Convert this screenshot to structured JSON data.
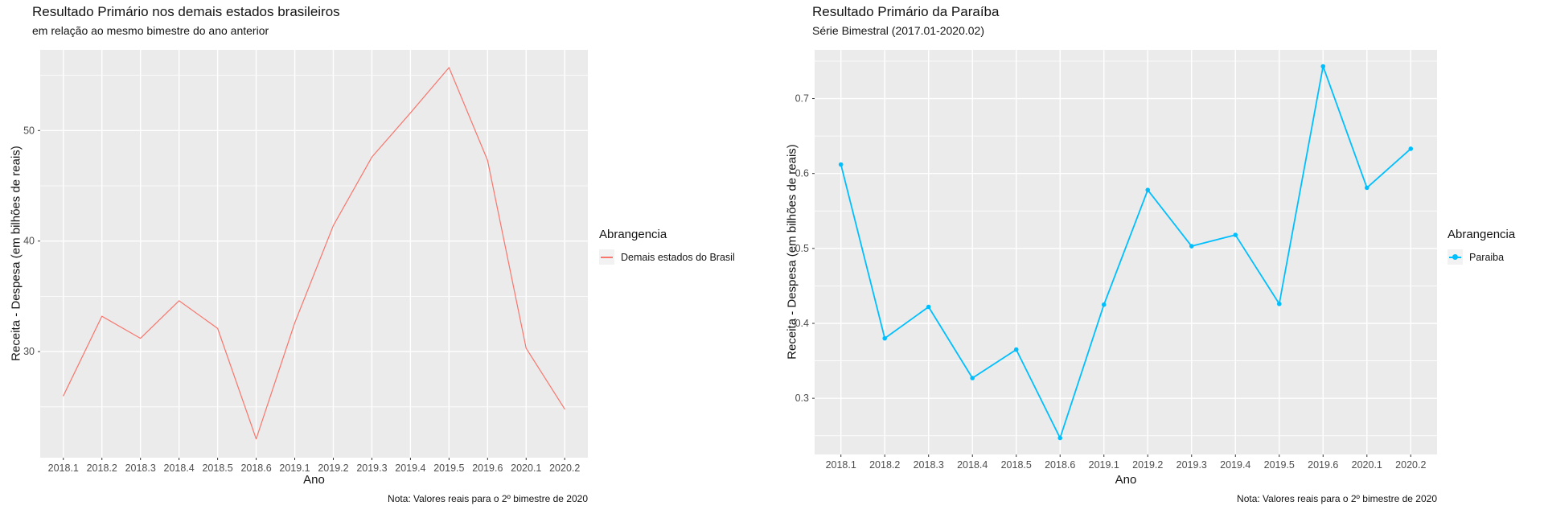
{
  "chart_data": [
    {
      "type": "line",
      "title": "Resultado Primário nos demais estados brasileiros",
      "subtitle": "em relação ao mesmo bimestre do ano anterior",
      "xlabel": "Ano",
      "ylabel": "Receita - Despesa (em bilhões de reais)",
      "caption": "Nota: Valores reais para o 2º bimestre de 2020",
      "legend_title": "Abrangencia",
      "legend_position": "right",
      "grid": true,
      "panel_bg": "#EBEBEB",
      "grid_color": "#FFFFFF",
      "categories": [
        "2018.1",
        "2018.2",
        "2018.3",
        "2018.4",
        "2018.5",
        "2018.6",
        "2019.1",
        "2019.2",
        "2019.3",
        "2019.4",
        "2019.5",
        "2019.6",
        "2020.1",
        "2020.2"
      ],
      "series": [
        {
          "name": "Demais estados do Brasil",
          "color": "#F8766D",
          "marker": false,
          "values": [
            26.0,
            33.2,
            31.2,
            34.6,
            32.1,
            22.1,
            32.6,
            41.4,
            47.6,
            51.6,
            55.7,
            47.3,
            30.3,
            24.8
          ]
        }
      ],
      "ylim": [
        20.4,
        57.3
      ],
      "yticks": [
        30,
        40,
        50
      ],
      "ytick_labels": [
        "30",
        "40",
        "50"
      ],
      "yticks_minor": [
        25,
        35,
        45,
        55
      ]
    },
    {
      "type": "line",
      "title": "Resultado Primário da Paraíba",
      "subtitle": "Série Bimestral (2017.01-2020.02)",
      "xlabel": "Ano",
      "ylabel": "Receita - Despesa (em bilhões de reais)",
      "caption": "Nota: Valores reais para o 2º bimestre de 2020",
      "legend_title": "Abrangencia",
      "legend_position": "right",
      "grid": true,
      "panel_bg": "#EBEBEB",
      "grid_color": "#FFFFFF",
      "categories": [
        "2018.1",
        "2018.2",
        "2018.3",
        "2018.4",
        "2018.5",
        "2018.6",
        "2019.1",
        "2019.2",
        "2019.3",
        "2019.4",
        "2019.5",
        "2019.6",
        "2020.1",
        "2020.2"
      ],
      "series": [
        {
          "name": "Paraiba",
          "color": "#00BFFF",
          "marker": true,
          "values": [
            0.612,
            0.38,
            0.422,
            0.327,
            0.365,
            0.247,
            0.425,
            0.578,
            0.503,
            0.518,
            0.426,
            0.743,
            0.581,
            0.633
          ]
        }
      ],
      "ylim": [
        0.225,
        0.765
      ],
      "yticks": [
        0.3,
        0.4,
        0.5,
        0.6,
        0.7
      ],
      "ytick_labels": [
        "0.3",
        "0.4",
        "0.5",
        "0.6",
        "0.7"
      ],
      "yticks_minor": [
        0.25,
        0.35,
        0.45,
        0.55,
        0.65,
        0.75
      ]
    }
  ]
}
